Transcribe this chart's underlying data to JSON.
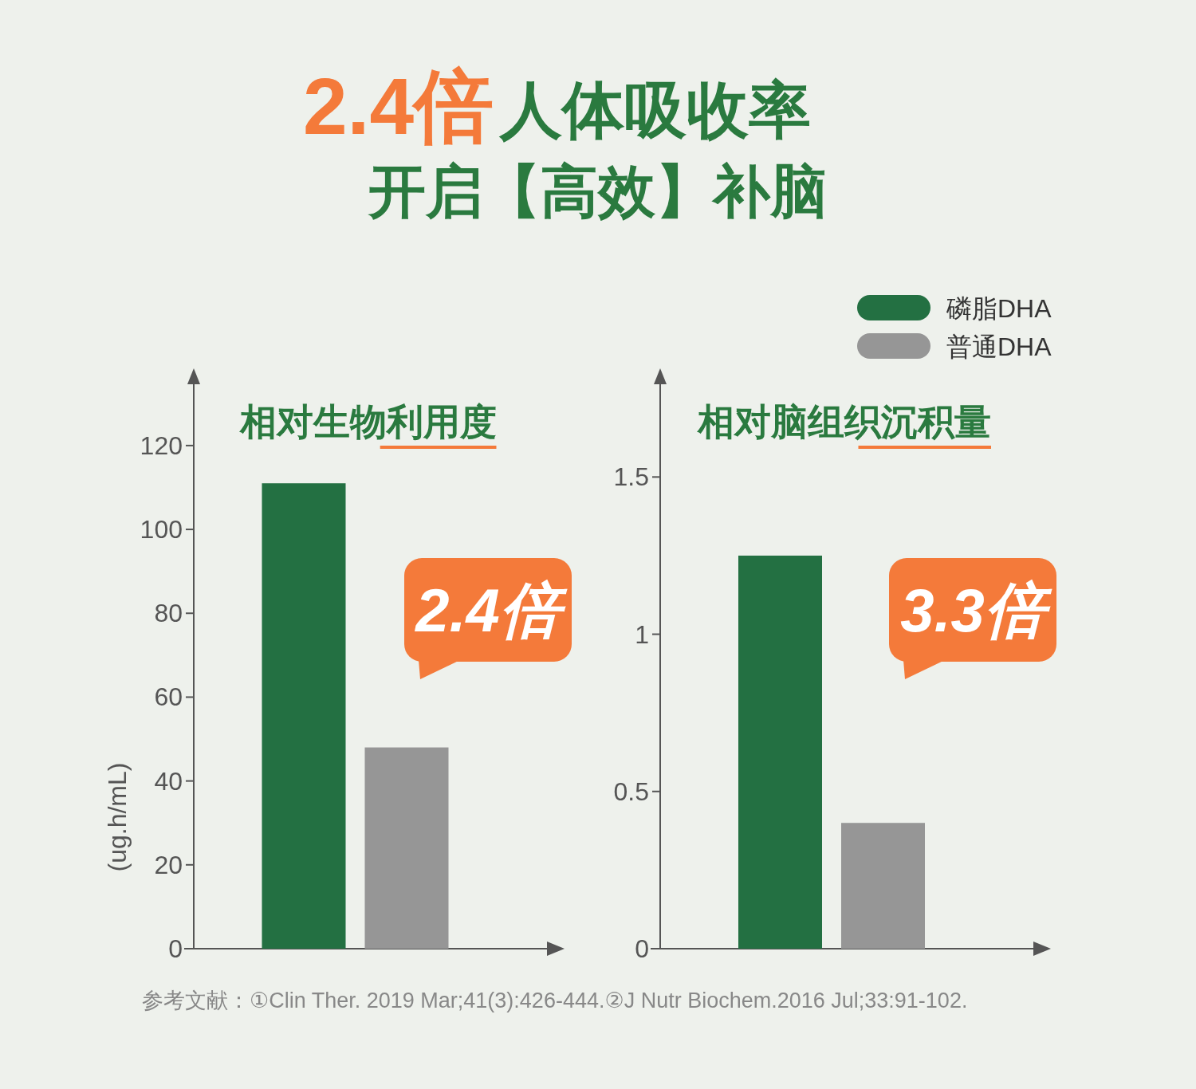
{
  "chart_data": [
    {
      "type": "bar",
      "title": "相对生物利用度",
      "ylabel": "(ug.h/mL)",
      "categories": [
        null
      ],
      "series": [
        {
          "color": "#237042",
          "values": [
            111
          ]
        },
        {
          "color": "#969696",
          "values": [
            48
          ]
        }
      ],
      "ylim": [
        0,
        135
      ],
      "yticks": [
        0,
        20,
        40,
        60,
        80,
        100,
        120
      ],
      "annotations": [
        "2.4倍",
        "人体吸收率",
        "开启【高效】补脑",
        "2.4倍",
        "参考文献：①Clin Ther. 2019 Mar;41(3):426-444.②J Nutr Biochem.2016 Jul;33:91-102."
      ]
    },
    {
      "type": "bar",
      "title": "相对脑组织沉积量",
      "categories": [
        null
      ],
      "series": [
        {
          "name": "磷脂DHA",
          "color": "#237042",
          "values": [
            1.25
          ]
        },
        {
          "name": "普通DHA",
          "color": "#969696",
          "values": [
            0.4
          ]
        }
      ],
      "ylim": [
        0,
        1.8
      ],
      "yticks": [
        0,
        0.5,
        1,
        1.5
      ],
      "legend": "top right",
      "annotations": [
        "3.3倍"
      ]
    }
  ]
}
